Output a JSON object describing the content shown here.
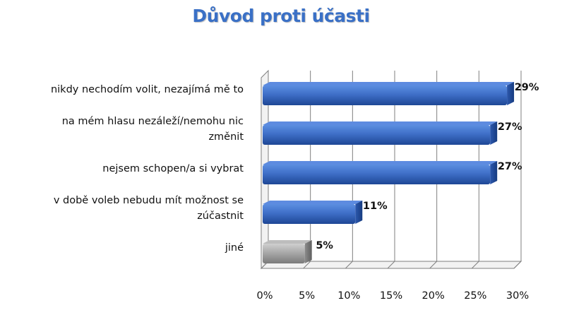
{
  "chart_data": {
    "type": "bar",
    "orientation": "horizontal",
    "title": "Důvod proti účasti",
    "xlabel": "",
    "ylabel": "",
    "xlim": [
      0,
      30
    ],
    "x_ticks": [
      "0%",
      "5%",
      "10%",
      "15%",
      "20%",
      "25%",
      "30%"
    ],
    "grid": true,
    "legend": "none",
    "categories": [
      [
        "nikdy nechodím volit, nezajímá mě to"
      ],
      [
        "na mém hlasu nezáleží/nemohu nic",
        "změnit"
      ],
      [
        "nejsem schopen/a si vybrat"
      ],
      [
        "v době voleb nebudu mít možnost se",
        "zúčastnit"
      ],
      [
        "jiné"
      ]
    ],
    "values": [
      29,
      27,
      27,
      11,
      5
    ],
    "value_labels": [
      "29%",
      "27%",
      "27%",
      "11%",
      "5%"
    ],
    "colors": {
      "bar": "#3f6fc8",
      "bar_dark": "#1f4a99",
      "bar_other": "#a6a6a6",
      "bar_other_dark": "#6e6e6e",
      "grid": "#7f7f7f",
      "title": "#3a70c6"
    }
  }
}
